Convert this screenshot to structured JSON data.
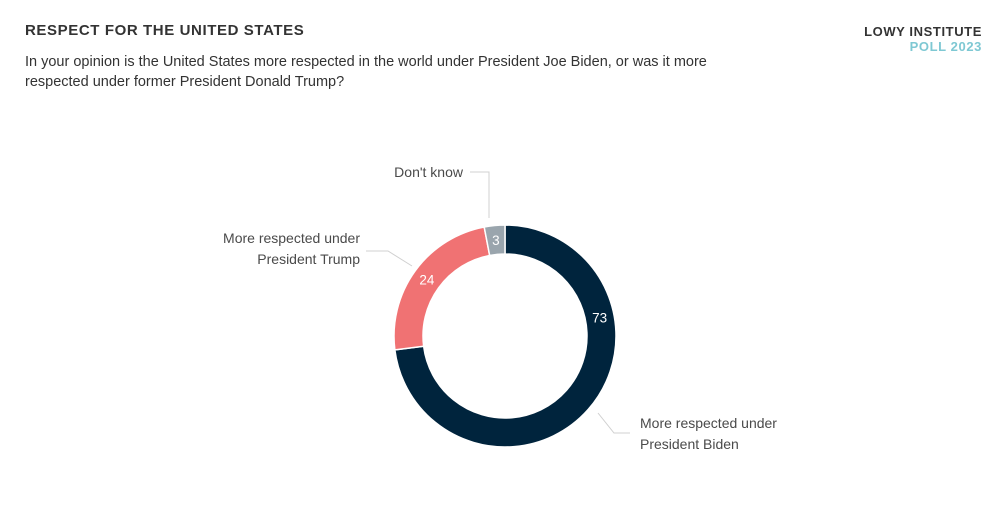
{
  "header": {
    "title": "RESPECT FOR THE UNITED STATES",
    "subtitle": "In your opinion is the United States more respected in the world under President Joe Biden, or was it more respected under former President Donald Trump?",
    "brand_line1": "LOWY INSTITUTE",
    "brand_line2": "POLL 2023",
    "brand_line2_color": "#7ec8d3"
  },
  "chart_data": {
    "type": "pie",
    "style": "donut",
    "slices": [
      {
        "label_lines": [
          "More respected under",
          "President Biden"
        ],
        "value": 73,
        "color": "#00243d"
      },
      {
        "label_lines": [
          "More respected under",
          "President Trump"
        ],
        "value": 24,
        "color": "#f07273"
      },
      {
        "label_lines": [
          "Don't know"
        ],
        "value": 3,
        "color": "#9aa5ad"
      }
    ]
  }
}
